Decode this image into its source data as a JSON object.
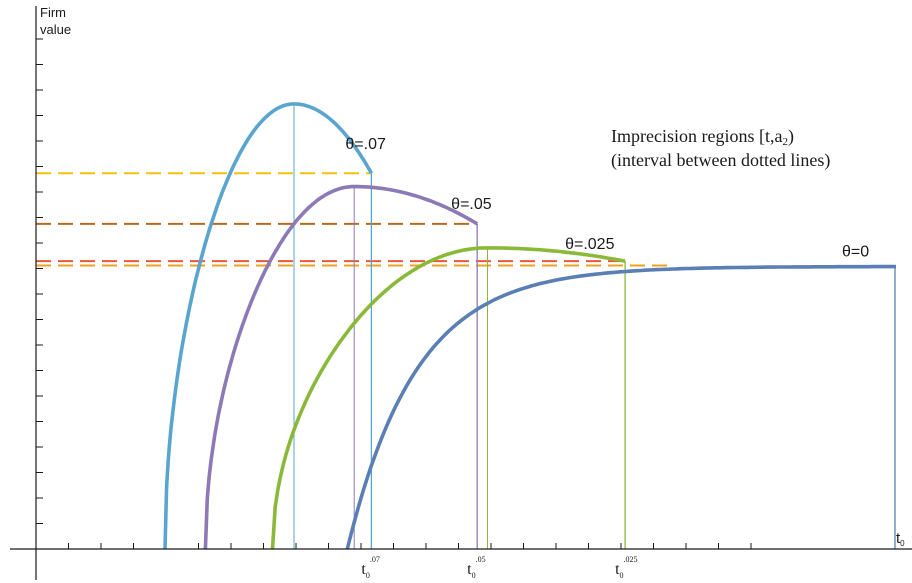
{
  "chart_data": {
    "type": "line",
    "ylabel_line1": "Firm",
    "ylabel_line2": "value",
    "xlabel": "t",
    "xlabel_sub": "0",
    "annotation_line1": "Imprecision regions [t,a",
    "annotation_sub": "2",
    "annotation_close": ")",
    "annotation_line2": "(interval between dotted lines)",
    "xlim": [
      0,
      10
    ],
    "ylim": [
      0,
      10
    ],
    "series": [
      {
        "name": "θ=.07",
        "color": "#5aa5d0",
        "start": 1.5,
        "peak_x": 3.0,
        "peak_y": 8.35,
        "end": 3.9,
        "end_y": 7.05,
        "dashed_color": "#f2c10b",
        "dashed_y": 7.05,
        "tick_label": "t",
        "tick_sub": "0",
        "tick_sup": ".07"
      },
      {
        "name": "θ=.05",
        "color": "#8c79b6",
        "start": 1.97,
        "peak_x": 3.7,
        "peak_y": 6.8,
        "end": 5.13,
        "end_y": 6.1,
        "dashed_color": "#b8691c",
        "dashed_y": 6.1,
        "tick_label": "t",
        "tick_sub": "0",
        "tick_sup": ".05"
      },
      {
        "name": "θ=.025",
        "color": "#8ab93a",
        "start": 2.75,
        "peak_x": 5.25,
        "peak_y": 5.65,
        "end": 6.85,
        "end_y": 5.4,
        "dashed_color": "#e8583a",
        "dashed_y": 5.4,
        "tick_label": "t",
        "tick_sub": "0",
        "tick_sup": ".025"
      },
      {
        "name": "θ=0",
        "color": "#5a7fb5",
        "start": 3.62,
        "asymptote": 5.3,
        "rate": 1.25,
        "end": 10.0,
        "dashed_color": "#f0a020",
        "dashed_y": 5.32
      }
    ]
  }
}
